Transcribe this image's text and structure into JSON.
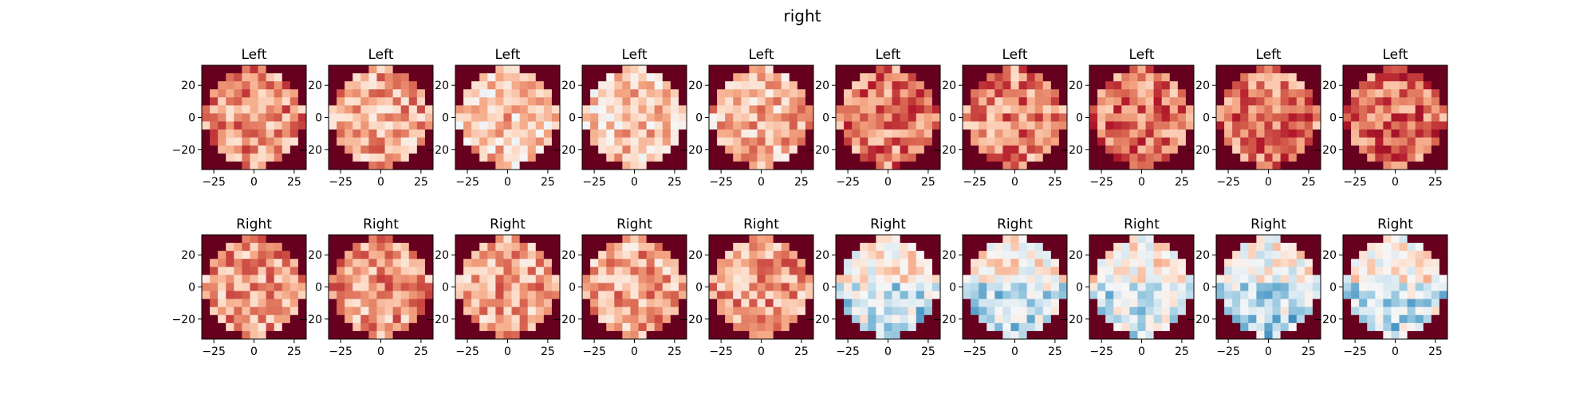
{
  "figure": {
    "suptitle": "right"
  },
  "chart_data": {
    "type": "heatmap",
    "title": "right",
    "colormap": "RdBu_r",
    "grid_cells": 13,
    "xlim": [
      -32.5,
      32.5
    ],
    "ylim": [
      -32.5,
      32.5
    ],
    "x_ticks": [
      -25,
      0,
      25
    ],
    "y_ticks": [
      20,
      0,
      -20
    ],
    "x_tick_labels": [
      "−25",
      "0",
      "25"
    ],
    "y_tick_labels": [
      "20",
      "0",
      "−20"
    ],
    "rows": [
      {
        "panel_title": "Left",
        "panels": 10,
        "color_level": [
          0.72,
          0.68,
          0.62,
          0.62,
          0.66,
          0.76,
          0.74,
          0.76,
          0.76,
          0.78
        ]
      },
      {
        "panel_title": "Right",
        "panels": 10,
        "color_level": [
          0.7,
          0.7,
          0.68,
          0.68,
          0.7,
          0.54,
          0.54,
          0.54,
          0.52,
          0.54
        ]
      }
    ]
  }
}
